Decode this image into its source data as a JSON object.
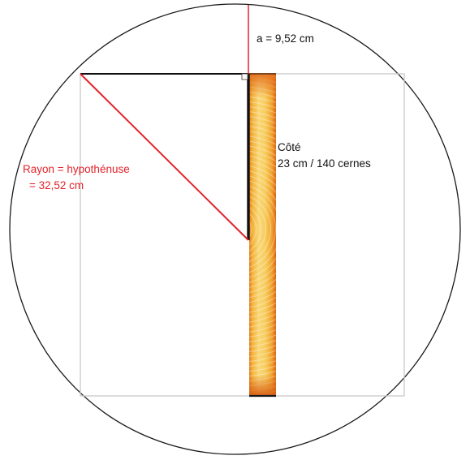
{
  "labels": {
    "sagitta": "a = 9,52 cm",
    "radius_line1": "Rayon = hypothénuse",
    "radius_line2": "= 32,52 cm",
    "side_line1": "Côté",
    "side_line2": "23 cm / 140 cernes"
  },
  "colors": {
    "circle": "#1a1a1a",
    "square": "#c9c9c9",
    "red_lines": "#e2232b",
    "black_lines": "#111111",
    "wood_light": "#f8d466",
    "wood_mid": "#f0a92e",
    "wood_dark": "#e06a1a"
  }
}
